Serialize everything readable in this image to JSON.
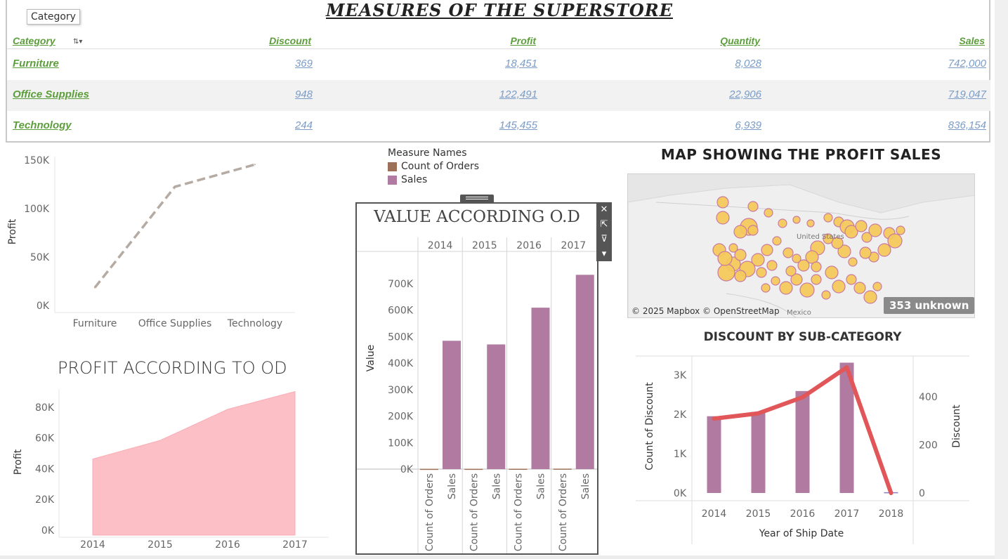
{
  "dashboard": {
    "title": "MEASURES OF THE SUPERSTORE",
    "tooltip": "Category"
  },
  "measures_table": {
    "headers": {
      "category": "Category",
      "discount": "Discount",
      "profit": "Profit",
      "quantity": "Quantity",
      "sales": "Sales"
    },
    "rows": [
      {
        "category": "Furniture",
        "discount": "369",
        "profit": "18,451",
        "quantity": "8,028",
        "sales": "742,000"
      },
      {
        "category": "Office Supplies",
        "discount": "948",
        "profit": "122,491",
        "quantity": "22,906",
        "sales": "719,047"
      },
      {
        "category": "Technology",
        "discount": "244",
        "profit": "145,455",
        "quantity": "6,939",
        "sales": "836,154"
      }
    ]
  },
  "legend": {
    "title": "Measure Names",
    "items": [
      {
        "label": "Count of Orders",
        "color": "#9c7158"
      },
      {
        "label": "Sales",
        "color": "#b07aa1"
      }
    ]
  },
  "map": {
    "title": "MAP SHOWING THE PROFIT SALES",
    "attribution": "© 2025 Mapbox © OpenStreetMap",
    "unknown_badge": "353 unknown",
    "label_country": "United States",
    "label_mexico": "Mexico"
  },
  "chart_data": [
    {
      "id": "profit_by_category",
      "type": "line",
      "title": "",
      "categories": [
        "Furniture",
        "Office Supplies",
        "Technology"
      ],
      "values": [
        18451,
        122491,
        145455
      ],
      "ylabel": "Profit",
      "ylim": [
        0,
        150000
      ],
      "yticks": [
        "0K",
        "50K",
        "100K",
        "150K"
      ],
      "style": "dashed",
      "color": "#b5aba3"
    },
    {
      "id": "profit_according_to_od",
      "type": "area",
      "title": "PROFIT ACCORDING TO OD",
      "categories": [
        "2014",
        "2015",
        "2016",
        "2017"
      ],
      "values": [
        49500,
        61600,
        81800,
        93400
      ],
      "ylabel": "Profit",
      "ylim": [
        0,
        95000
      ],
      "yticks": [
        "0K",
        "20K",
        "40K",
        "60K",
        "80K"
      ],
      "color": "#fcbfc5"
    },
    {
      "id": "value_according_od",
      "type": "bar",
      "title": "VALUE ACCORDING O.D",
      "years": [
        "2014",
        "2015",
        "2016",
        "2017"
      ],
      "series_labels": [
        "Count of Orders",
        "Sales"
      ],
      "series": [
        {
          "name": "Count of Orders",
          "values": [
            969,
            1038,
            1315,
            1687
          ]
        },
        {
          "name": "Sales",
          "values": [
            484247,
            470533,
            609206,
            733215
          ]
        }
      ],
      "ylabel": "Value",
      "ylim": [
        0,
        750000
      ],
      "yticks": [
        "0K",
        "100K",
        "200K",
        "300K",
        "400K",
        "500K",
        "600K",
        "700K"
      ]
    },
    {
      "id": "discount_by_subcategory",
      "type": "bar",
      "title": "DISCOUNT BY SUB-CATEGORY",
      "categories": [
        "2014",
        "2015",
        "2016",
        "2017",
        "2018"
      ],
      "series": [
        {
          "name": "Count of Discount",
          "values": [
            1950,
            2060,
            2590,
            3310,
            20
          ]
        },
        {
          "name": "Discount",
          "values": [
            309,
            331,
            398,
            522,
            0
          ]
        }
      ],
      "xlabel": "Year of Ship Date",
      "ylabel_left": "Count of Discount",
      "ylabel_right": "Discount",
      "ylim_left": [
        0,
        3300
      ],
      "ylim_right": [
        0,
        540
      ],
      "yticks_left": [
        "0K",
        "1K",
        "2K",
        "3K"
      ],
      "yticks_right": [
        "0",
        "200",
        "400"
      ],
      "bar_color": "#b07aa1",
      "line_color": "#e15759"
    }
  ]
}
